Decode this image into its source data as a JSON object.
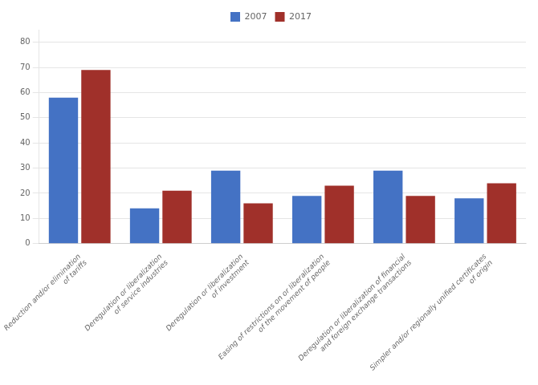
{
  "chart_data": {
    "type": "bar",
    "categories": [
      "Reduction and/or elimination\nof tariffs",
      "Deregulation or liberalization\nof service industries",
      "Deregulation or liberalization\nof investment",
      "Easing of restrictions on or liberalization\nof the movement of people",
      "Deregulation or liberalization of financial\nand foreign exchange transactions",
      "Simpler and/or regionally unified certificates\nof origin"
    ],
    "series": [
      {
        "name": "2007",
        "color": "#4472C4",
        "values": [
          58,
          14,
          29,
          19,
          29,
          18
        ]
      },
      {
        "name": "2017",
        "color": "#A0302A",
        "values": [
          69,
          21,
          16,
          23,
          19,
          24
        ]
      }
    ],
    "ylim": [
      0,
      85
    ],
    "yticks": [
      0,
      10,
      20,
      30,
      40,
      50,
      60,
      70,
      80
    ],
    "grid": true,
    "legend": "top"
  }
}
